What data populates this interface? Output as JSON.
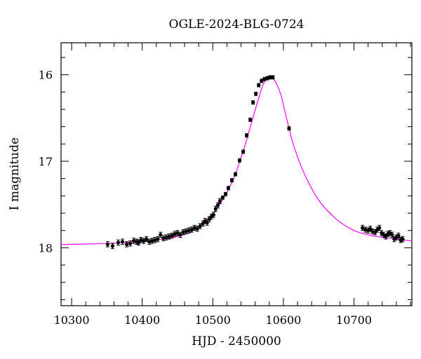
{
  "chart_data": {
    "type": "scatter",
    "title": "OGLE-2024-BLG-0724",
    "xlabel": "HJD - 2450000",
    "ylabel": "I magnitude",
    "xlim": [
      10285,
      10782
    ],
    "ylim": [
      18.67,
      15.63
    ],
    "y_inverted": true,
    "xticks": [
      10300,
      10400,
      10500,
      10600,
      10700
    ],
    "yticks": [
      16,
      17,
      18
    ],
    "grid": false,
    "colors": {
      "points": "#000000",
      "model": "#ff00ff",
      "axes": "#000000"
    },
    "model": {
      "name": "",
      "x": [
        10285,
        10300,
        10350,
        10400,
        10425,
        10450,
        10475,
        10500,
        10515,
        10530,
        10545,
        10555,
        10565,
        10572,
        10578,
        10582,
        10585,
        10590,
        10597,
        10605,
        10615,
        10630,
        10650,
        10675,
        10700,
        10725,
        10750,
        10782
      ],
      "y": [
        17.965,
        17.96,
        17.95,
        17.925,
        17.905,
        17.87,
        17.79,
        17.6,
        17.43,
        17.19,
        16.83,
        16.55,
        16.27,
        16.1,
        16.04,
        16.03,
        16.04,
        16.1,
        16.25,
        16.52,
        16.83,
        17.15,
        17.45,
        17.67,
        17.8,
        17.86,
        17.89,
        17.92
      ]
    },
    "series": [
      {
        "name": "",
        "x": [
          10351,
          10358,
          10366,
          10372,
          10378,
          10383,
          10388,
          10392,
          10395,
          10398,
          10402,
          10406,
          10410,
          10414,
          10418,
          10422,
          10426,
          10430,
          10434,
          10438,
          10442,
          10446,
          10450,
          10454,
          10458,
          10462,
          10466,
          10470,
          10474,
          10478,
          10482,
          10486,
          10489,
          10492,
          10495,
          10498,
          10501,
          10504,
          10507,
          10510,
          10514,
          10518,
          10522,
          10527,
          10532,
          10538,
          10543,
          10548,
          10553,
          10557,
          10561,
          10565,
          10569,
          10573,
          10577,
          10581,
          10585,
          10608,
          10712,
          10716,
          10720,
          10723,
          10726,
          10730,
          10733,
          10736,
          10739,
          10742,
          10745,
          10748,
          10751,
          10754,
          10757,
          10760,
          10763,
          10766,
          10769
        ],
        "y": [
          17.96,
          17.98,
          17.94,
          17.93,
          17.96,
          17.95,
          17.92,
          17.93,
          17.94,
          17.91,
          17.92,
          17.9,
          17.93,
          17.92,
          17.91,
          17.9,
          17.85,
          17.89,
          17.88,
          17.87,
          17.86,
          17.84,
          17.83,
          17.85,
          17.82,
          17.81,
          17.8,
          17.79,
          17.77,
          17.78,
          17.75,
          17.72,
          17.69,
          17.71,
          17.67,
          17.64,
          17.62,
          17.55,
          17.51,
          17.46,
          17.42,
          17.38,
          17.31,
          17.22,
          17.15,
          16.99,
          16.89,
          16.7,
          16.52,
          16.32,
          16.22,
          16.12,
          16.07,
          16.05,
          16.04,
          16.03,
          16.03,
          16.62,
          17.77,
          17.79,
          17.8,
          17.78,
          17.81,
          17.82,
          17.79,
          17.77,
          17.83,
          17.85,
          17.87,
          17.84,
          17.83,
          17.85,
          17.9,
          17.88,
          17.86,
          17.91,
          17.9
        ],
        "err": [
          0.03,
          0.03,
          0.03,
          0.03,
          0.03,
          0.03,
          0.03,
          0.03,
          0.03,
          0.03,
          0.03,
          0.03,
          0.03,
          0.03,
          0.03,
          0.03,
          0.03,
          0.03,
          0.03,
          0.03,
          0.03,
          0.03,
          0.03,
          0.03,
          0.03,
          0.03,
          0.03,
          0.03,
          0.03,
          0.03,
          0.03,
          0.03,
          0.03,
          0.03,
          0.03,
          0.03,
          0.03,
          0.03,
          0.03,
          0.03,
          0.02,
          0.02,
          0.02,
          0.02,
          0.02,
          0.02,
          0.02,
          0.02,
          0.02,
          0.02,
          0.02,
          0.02,
          0.02,
          0.02,
          0.02,
          0.02,
          0.02,
          0.02,
          0.03,
          0.03,
          0.03,
          0.03,
          0.03,
          0.03,
          0.03,
          0.03,
          0.03,
          0.03,
          0.03,
          0.03,
          0.03,
          0.03,
          0.03,
          0.03,
          0.03,
          0.03,
          0.03
        ]
      }
    ]
  }
}
